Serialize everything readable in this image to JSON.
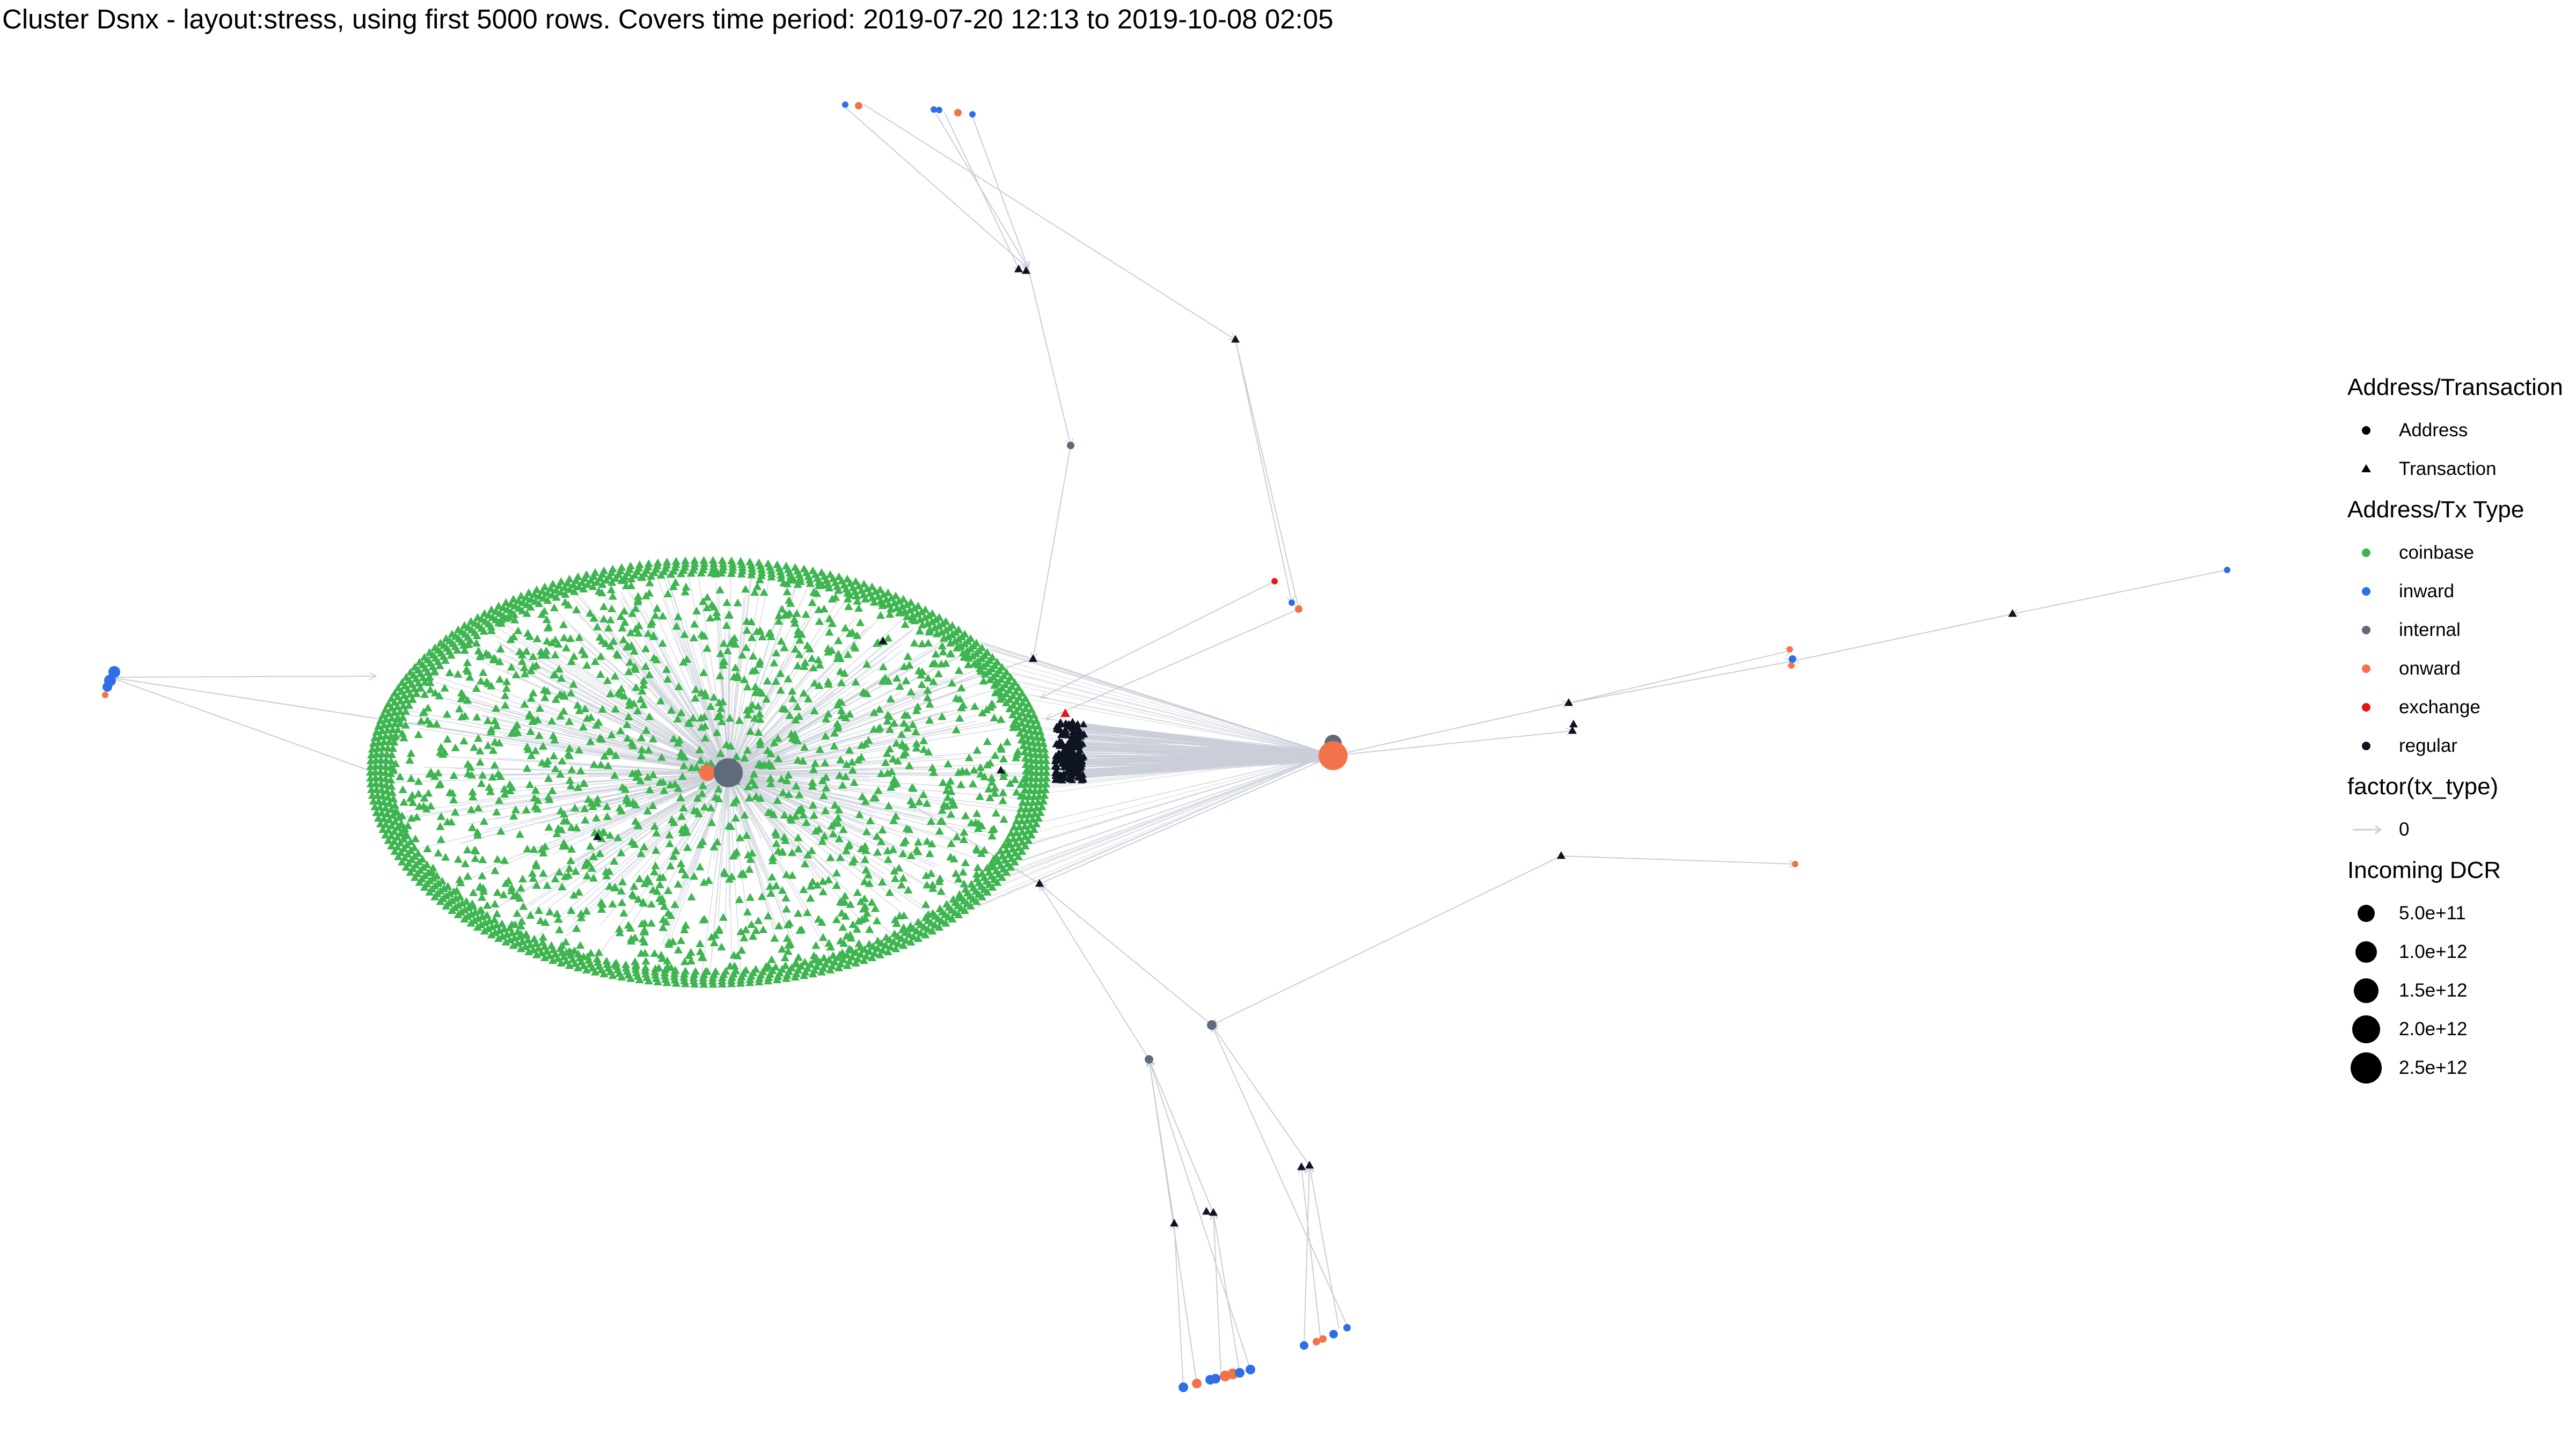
{
  "title": "Cluster Dsnx - layout:stress, using first 5000 rows. Covers time period: 2019-07-20 12:13 to 2019-10-08 02:05",
  "colors": {
    "coinbase": "#3eb550",
    "inward": "#2f6fe6",
    "internal": "#5f6b7a",
    "onward": "#f2734a",
    "exchange": "#e8141b",
    "regular": "#0f1422",
    "edge": "#c9ced8"
  },
  "legend": {
    "shape": {
      "title": "Address/Transaction",
      "items": [
        {
          "label": "Address",
          "icon": "circle-icon"
        },
        {
          "label": "Transaction",
          "icon": "triangle-icon"
        }
      ]
    },
    "type": {
      "title": "Address/Tx Type",
      "items": [
        {
          "label": "coinbase",
          "key": "coinbase"
        },
        {
          "label": "inward",
          "key": "inward"
        },
        {
          "label": "internal",
          "key": "internal"
        },
        {
          "label": "onward",
          "key": "onward"
        },
        {
          "label": "exchange",
          "key": "exchange"
        },
        {
          "label": "regular",
          "key": "regular"
        }
      ]
    },
    "edges": {
      "title": "factor(tx_type)",
      "items": [
        {
          "label": "0",
          "icon": "arrow-icon"
        }
      ]
    },
    "size": {
      "title": "Incoming DCR",
      "items": [
        {
          "label": "5.0e+11",
          "value": 500000000000
        },
        {
          "label": "1.0e+12",
          "value": 1000000000000
        },
        {
          "label": "1.5e+12",
          "value": 1500000000000
        },
        {
          "label": "2.0e+12",
          "value": 2000000000000
        },
        {
          "label": "2.5e+12",
          "value": 2500000000000
        }
      ]
    }
  }
}
